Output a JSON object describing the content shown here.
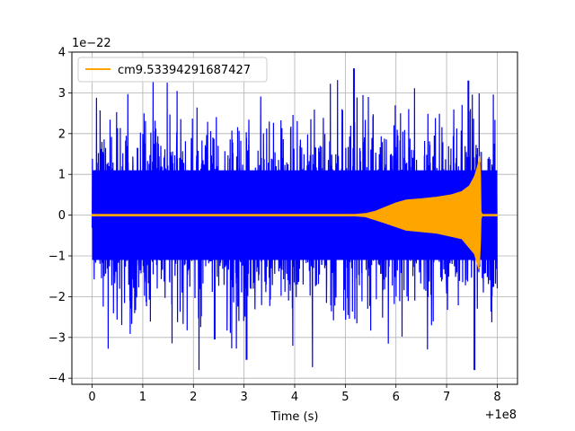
{
  "chart_data": {
    "type": "line",
    "xlabel": "Time (s)",
    "ylabel": "",
    "x_offset_label": "+1e8",
    "y_scale_label": "1e−22",
    "xlim": [
      -0.4,
      8.4
    ],
    "ylim": [
      -4.15,
      4.0
    ],
    "x_ticks": [
      0,
      1,
      2,
      3,
      4,
      5,
      6,
      7,
      8
    ],
    "x_tick_labels": [
      "0",
      "1",
      "2",
      "3",
      "4",
      "5",
      "6",
      "7",
      "8"
    ],
    "y_ticks": [
      -4,
      -3,
      -2,
      -1,
      0,
      1,
      2,
      3,
      4
    ],
    "y_tick_labels": [
      "−4",
      "−3",
      "−2",
      "−1",
      "0",
      "1",
      "2",
      "3",
      "4"
    ],
    "grid": true,
    "legend_position": "top-left",
    "noise": {
      "color": "#0000ff",
      "x_start": 0,
      "x_end": 8,
      "typical_amplitude": 1.6,
      "peak_max": 3.65,
      "peak_min": -3.8
    },
    "series": [
      {
        "name": "cm9.53394291687427",
        "color": "#ffa500",
        "envelope": [
          [
            0,
            0.02
          ],
          [
            5.0,
            0.02
          ],
          [
            5.2,
            0.02
          ],
          [
            5.4,
            0.04
          ],
          [
            5.6,
            0.1
          ],
          [
            5.8,
            0.2
          ],
          [
            6.0,
            0.3
          ],
          [
            6.2,
            0.37
          ],
          [
            6.5,
            0.4
          ],
          [
            6.8,
            0.44
          ],
          [
            7.1,
            0.5
          ],
          [
            7.3,
            0.58
          ],
          [
            7.45,
            0.72
          ],
          [
            7.55,
            0.95
          ],
          [
            7.6,
            1.15
          ],
          [
            7.63,
            1.3
          ],
          [
            7.65,
            1.45
          ],
          [
            7.67,
            1.0
          ],
          [
            7.68,
            0.1
          ],
          [
            7.7,
            0.02
          ],
          [
            8.0,
            0.02
          ]
        ],
        "envelope_lower": [
          [
            5.4,
            -0.04
          ],
          [
            5.8,
            -0.2
          ],
          [
            6.2,
            -0.37
          ],
          [
            6.8,
            -0.44
          ],
          [
            7.3,
            -0.58
          ],
          [
            7.55,
            -0.95
          ],
          [
            7.63,
            -1.3
          ],
          [
            7.66,
            -1.15
          ],
          [
            7.68,
            -0.1
          ]
        ]
      }
    ]
  }
}
